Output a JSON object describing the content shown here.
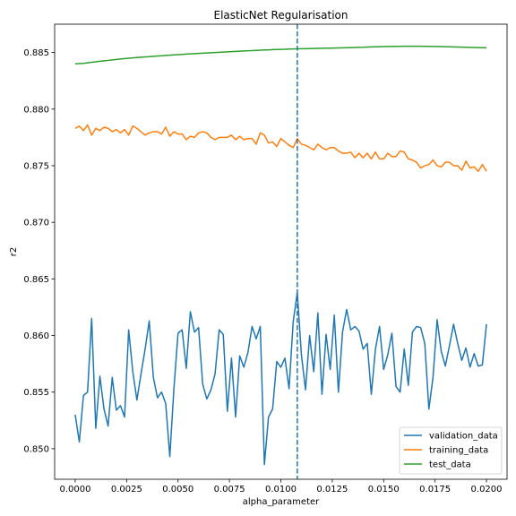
{
  "chart_data": {
    "type": "line",
    "title": "ElasticNet Regularisation",
    "xlabel": "alpha_parameter",
    "ylabel": "r2",
    "xlim": [
      -0.001,
      0.021
    ],
    "ylim": [
      0.8473,
      0.8875
    ],
    "x_ticks": [
      0.0,
      0.0025,
      0.005,
      0.0075,
      0.01,
      0.0125,
      0.015,
      0.0175,
      0.02
    ],
    "x_tick_labels": [
      "0.0000",
      "0.0025",
      "0.0050",
      "0.0075",
      "0.0100",
      "0.0125",
      "0.0150",
      "0.0175",
      "0.0200"
    ],
    "y_ticks": [
      0.85,
      0.855,
      0.86,
      0.865,
      0.87,
      0.875,
      0.88,
      0.885
    ],
    "y_tick_labels": [
      "0.850",
      "0.855",
      "0.860",
      "0.865",
      "0.870",
      "0.875",
      "0.880",
      "0.885"
    ],
    "grid": false,
    "legend_position": "lower-right",
    "vertical_line": {
      "x": 0.0108,
      "style": "dashed",
      "color": "#1f77b4"
    },
    "x_start": 0.0,
    "x_end": 0.02,
    "series": [
      {
        "name": "validation_data",
        "color": "#1f77b4",
        "values": [
          0.853,
          0.8506,
          0.8547,
          0.855,
          0.8615,
          0.8518,
          0.8564,
          0.8535,
          0.852,
          0.8563,
          0.8534,
          0.8538,
          0.8528,
          0.8605,
          0.8568,
          0.8543,
          0.8566,
          0.8588,
          0.8613,
          0.8563,
          0.8545,
          0.855,
          0.854,
          0.8493,
          0.8553,
          0.8602,
          0.8605,
          0.8571,
          0.8621,
          0.8603,
          0.8607,
          0.8557,
          0.8544,
          0.8552,
          0.8566,
          0.8605,
          0.8601,
          0.8533,
          0.858,
          0.8528,
          0.8582,
          0.8572,
          0.8585,
          0.8608,
          0.8597,
          0.8608,
          0.8486,
          0.8528,
          0.8535,
          0.8577,
          0.8572,
          0.858,
          0.8553,
          0.8612,
          0.8638,
          0.8583,
          0.8552,
          0.86,
          0.8568,
          0.862,
          0.8548,
          0.8601,
          0.857,
          0.8618,
          0.855,
          0.8603,
          0.8623,
          0.8605,
          0.8608,
          0.8604,
          0.8588,
          0.8593,
          0.8548,
          0.8588,
          0.8608,
          0.857,
          0.8583,
          0.8602,
          0.8555,
          0.855,
          0.8588,
          0.8556,
          0.8603,
          0.8608,
          0.8607,
          0.8593,
          0.8535,
          0.8563,
          0.8614,
          0.8586,
          0.8573,
          0.8591,
          0.861,
          0.8593,
          0.8578,
          0.8589,
          0.8572,
          0.8584,
          0.8573,
          0.8574,
          0.861
        ]
      },
      {
        "name": "training_data",
        "color": "#ff7f0e",
        "values": [
          0.8783,
          0.8785,
          0.8781,
          0.8786,
          0.8777,
          0.8783,
          0.8781,
          0.8784,
          0.8783,
          0.878,
          0.8782,
          0.8779,
          0.8782,
          0.8777,
          0.8785,
          0.8783,
          0.878,
          0.8777,
          0.8779,
          0.878,
          0.878,
          0.8778,
          0.8784,
          0.8776,
          0.878,
          0.8778,
          0.8778,
          0.8773,
          0.8776,
          0.8775,
          0.8779,
          0.878,
          0.8779,
          0.8775,
          0.8773,
          0.8775,
          0.8775,
          0.8775,
          0.8777,
          0.8773,
          0.8776,
          0.8773,
          0.8774,
          0.8774,
          0.8769,
          0.8779,
          0.8777,
          0.877,
          0.8771,
          0.8767,
          0.8774,
          0.8771,
          0.8768,
          0.8766,
          0.8774,
          0.8769,
          0.8768,
          0.8766,
          0.8764,
          0.8769,
          0.8766,
          0.8764,
          0.8766,
          0.8766,
          0.8763,
          0.8761,
          0.8761,
          0.8762,
          0.8757,
          0.8761,
          0.8757,
          0.8761,
          0.8756,
          0.8762,
          0.8756,
          0.8756,
          0.8761,
          0.8758,
          0.8758,
          0.8763,
          0.8762,
          0.8756,
          0.8755,
          0.8753,
          0.8748,
          0.875,
          0.8751,
          0.8755,
          0.875,
          0.8749,
          0.8753,
          0.8753,
          0.875,
          0.875,
          0.8746,
          0.8754,
          0.8748,
          0.8749,
          0.8745,
          0.8751,
          0.8745
        ]
      },
      {
        "name": "test_data",
        "color": "#2ca02c",
        "values": [
          0.884,
          0.88402,
          0.88404,
          0.88409,
          0.88414,
          0.88418,
          0.88423,
          0.88427,
          0.8843,
          0.88434,
          0.88438,
          0.88442,
          0.88446,
          0.88449,
          0.88452,
          0.88455,
          0.88458,
          0.88461,
          0.88463,
          0.88466,
          0.88469,
          0.88471,
          0.88474,
          0.88476,
          0.88479,
          0.88481,
          0.88483,
          0.88486,
          0.88488,
          0.8849,
          0.88492,
          0.88494,
          0.88496,
          0.88498,
          0.885,
          0.88502,
          0.88504,
          0.88506,
          0.88508,
          0.8851,
          0.88512,
          0.88514,
          0.88516,
          0.88517,
          0.88519,
          0.8852,
          0.88522,
          0.88523,
          0.88525,
          0.88526,
          0.88527,
          0.88528,
          0.8853,
          0.88531,
          0.88532,
          0.88533,
          0.88533,
          0.88534,
          0.88535,
          0.88536,
          0.88537,
          0.88538,
          0.88538,
          0.88539,
          0.8854,
          0.88541,
          0.88542,
          0.88543,
          0.88544,
          0.88545,
          0.88546,
          0.88548,
          0.88549,
          0.8855,
          0.88551,
          0.88552,
          0.88553,
          0.88553,
          0.88554,
          0.88554,
          0.88555,
          0.88555,
          0.88555,
          0.88555,
          0.88555,
          0.88554,
          0.88554,
          0.88553,
          0.88553,
          0.88552,
          0.88551,
          0.8855,
          0.88549,
          0.88548,
          0.88547,
          0.88546,
          0.88545,
          0.88544,
          0.88543,
          0.88542,
          0.88541
        ]
      }
    ]
  }
}
